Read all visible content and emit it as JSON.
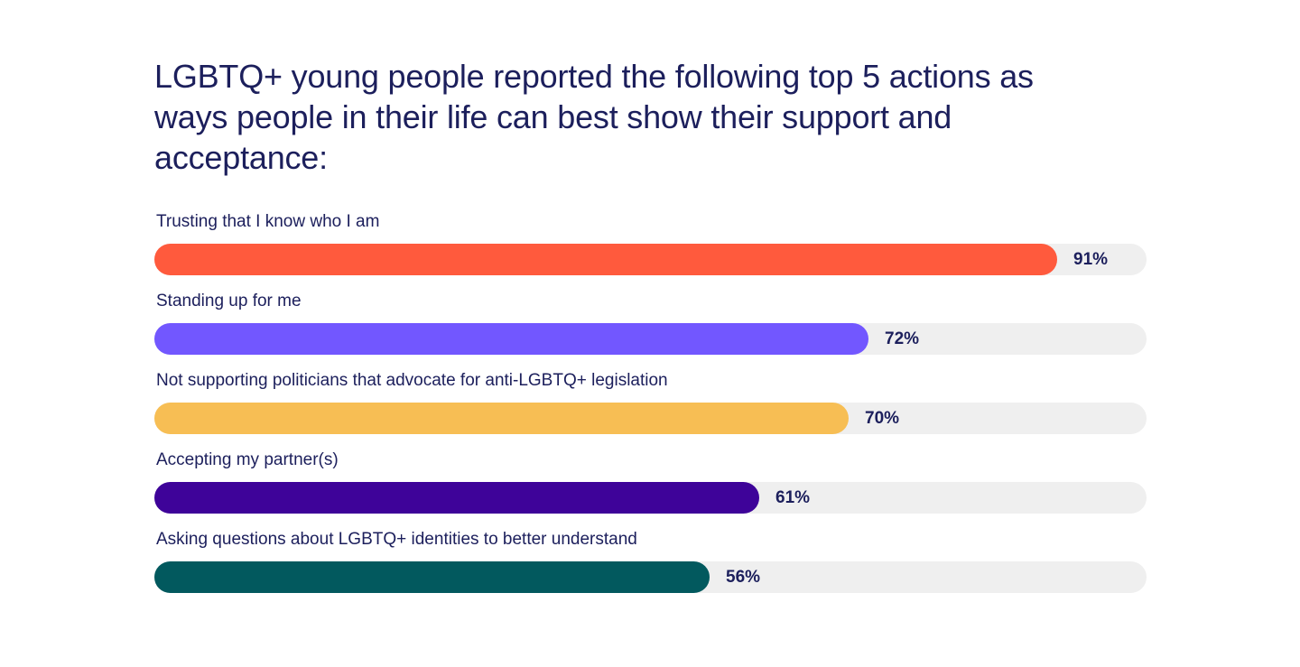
{
  "chart_data": {
    "type": "bar",
    "orientation": "horizontal",
    "title": "LGBTQ+ young people reported the following top 5 actions as ways people in their life can best show their support and acceptance:",
    "xlim": [
      0,
      100
    ],
    "bars": [
      {
        "label": "Trusting that I know who I am",
        "value": 91,
        "value_label": "91%",
        "color": "#ff5a3d"
      },
      {
        "label": "Standing up for me",
        "value": 72,
        "value_label": "72%",
        "color": "#7257ff"
      },
      {
        "label": "Not supporting politicians that advocate for anti-LGBTQ+ legislation",
        "value": 70,
        "value_label": "70%",
        "color": "#f7be54"
      },
      {
        "label": "Accepting my partner(s)",
        "value": 61,
        "value_label": "61%",
        "color": "#3e0399"
      },
      {
        "label": "Asking questions about LGBTQ+ identities to better understand",
        "value": 56,
        "value_label": "56%",
        "color": "#02595e"
      }
    ],
    "track_color": "#efefef"
  }
}
